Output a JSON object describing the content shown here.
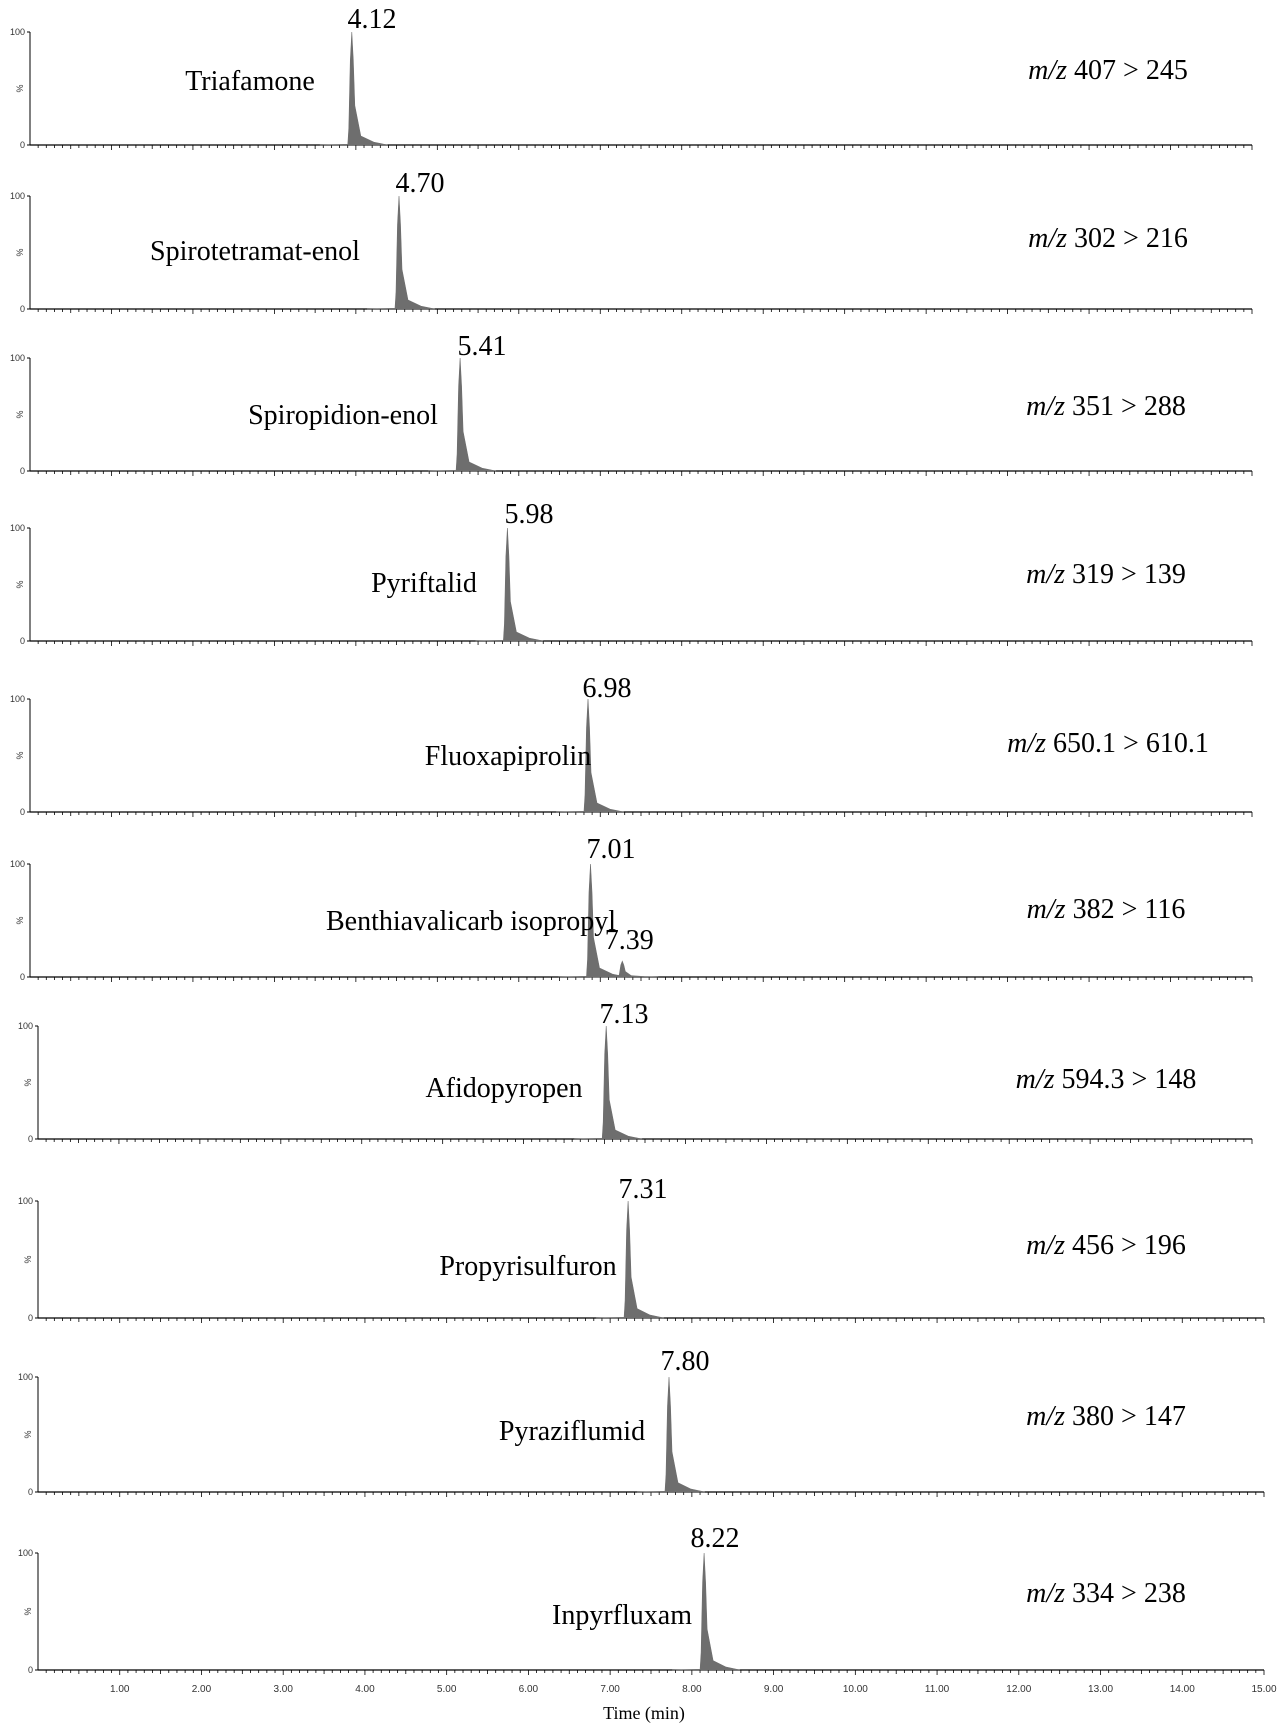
{
  "chart_data": {
    "type": "line",
    "xlabel": "Time (min)",
    "xlim": [
      0,
      15
    ],
    "x_ticks": [
      "1.00",
      "2.00",
      "3.00",
      "4.00",
      "5.00",
      "6.00",
      "7.00",
      "8.00",
      "9.00",
      "10.00",
      "11.00",
      "12.00",
      "13.00",
      "14.00",
      "15.00"
    ],
    "y_ticks": [
      "100",
      "%",
      "0"
    ],
    "ylim": [
      0,
      100
    ],
    "grid": false,
    "panels": [
      {
        "compound": "Triafamone",
        "peaks": [
          {
            "rt_label": "4.12",
            "x": 3.95,
            "y": 100
          }
        ],
        "mz_prefix": "m/z",
        "mz_value": "407 > 245"
      },
      {
        "compound": "Spirotetramat-enol",
        "peaks": [
          {
            "rt_label": "4.70",
            "x": 4.53,
            "y": 100
          }
        ],
        "mz_prefix": "m/z",
        "mz_value": "302 > 216"
      },
      {
        "compound": "Spiropidion-enol",
        "peaks": [
          {
            "rt_label": "5.41",
            "x": 5.28,
            "y": 100
          }
        ],
        "mz_prefix": "m/z",
        "mz_value": "351 > 288"
      },
      {
        "compound": "Pyriftalid",
        "peaks": [
          {
            "rt_label": "5.98",
            "x": 5.86,
            "y": 100
          }
        ],
        "mz_prefix": "m/z",
        "mz_value": "319 > 139"
      },
      {
        "compound": "Fluoxapiprolin",
        "peaks": [
          {
            "rt_label": "6.98",
            "x": 6.85,
            "y": 100
          }
        ],
        "mz_prefix": "m/z",
        "mz_value": "650.1 > 610.1"
      },
      {
        "compound": "Benthiavalicarb isopropyl",
        "peaks": [
          {
            "rt_label": "7.01",
            "x": 6.88,
            "y": 100
          },
          {
            "rt_label": "7.39",
            "x": 7.27,
            "y": 14
          }
        ],
        "mz_prefix": "m/z",
        "mz_value": "382 > 116"
      },
      {
        "compound": "Afidopyropen",
        "peaks": [
          {
            "rt_label": "7.13",
            "x": 7.02,
            "y": 100
          }
        ],
        "mz_prefix": "m/z",
        "mz_value": "594.3 > 148"
      },
      {
        "compound": "Propyrisulfuron",
        "peaks": [
          {
            "rt_label": "7.31",
            "x": 7.22,
            "y": 100
          }
        ],
        "mz_prefix": "m/z",
        "mz_value": "456 > 196"
      },
      {
        "compound": "Pyraziflumid",
        "peaks": [
          {
            "rt_label": "7.80",
            "x": 7.72,
            "y": 100
          }
        ],
        "mz_prefix": "m/z",
        "mz_value": "380 > 147"
      },
      {
        "compound": "Inpyrfluxam",
        "peaks": [
          {
            "rt_label": "8.22",
            "x": 8.15,
            "y": 100
          }
        ],
        "mz_prefix": "m/z",
        "mz_value": "334 > 238"
      }
    ]
  },
  "colors": {
    "peak_fill": "#6e6e6e",
    "axis": "#000000"
  }
}
